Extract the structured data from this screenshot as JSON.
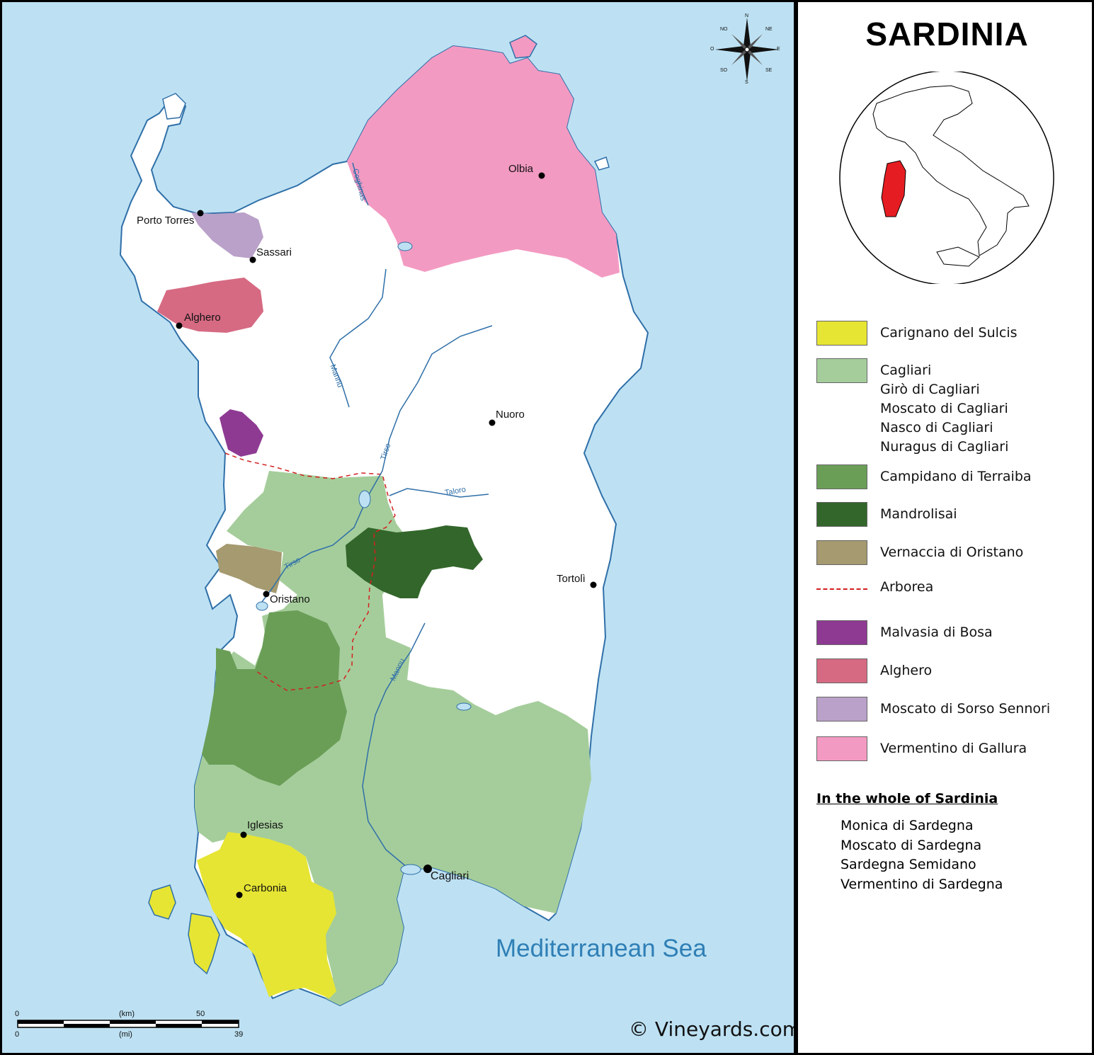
{
  "title": "SARDINIA",
  "sea_label": "Mediterranean Sea",
  "copyright": "© Vineyards.com",
  "colors": {
    "sea": "#bde1f3",
    "land": "#ffffff",
    "coast": "#2f6fa8",
    "carignano": "#e6e533",
    "cagliari": "#a5cd9b",
    "campidano": "#6a9e57",
    "mandrolisai": "#33662b",
    "vernaccia": "#a59a70",
    "arborea": "#d32020",
    "malvasia": "#8e3a93",
    "alghero": "#d66a83",
    "moscato_sorso": "#baa1c9",
    "vermentino_gallura": "#f39ac2",
    "italy_sardinia": "#e51d22"
  },
  "cities": [
    {
      "name": "Olbia"
    },
    {
      "name": "Porto Torres"
    },
    {
      "name": "Sassari"
    },
    {
      "name": "Alghero"
    },
    {
      "name": "Nuoro"
    },
    {
      "name": "Tortolì"
    },
    {
      "name": "Oristano"
    },
    {
      "name": "Iglesias"
    },
    {
      "name": "Carbonia"
    },
    {
      "name": "Cagliari"
    }
  ],
  "rivers": {
    "coghinas": "Coghinas",
    "manna_north": "Mannu",
    "tirso_upper": "Tirso",
    "taloro": "Taloro",
    "tirso_lower": "Tirso",
    "manna_south": "Mannu"
  },
  "compass": {
    "n": "N",
    "s": "S",
    "e": "E",
    "o": "O",
    "no": "NO",
    "ne": "NE",
    "so": "SO",
    "se": "SE"
  },
  "scale": {
    "km_label": "(km)",
    "mi_label": "(mi)",
    "km_zero": "0",
    "km_max": "50",
    "mi_zero": "0",
    "mi_max": "39"
  },
  "legend": [
    {
      "key": "carignano",
      "labels": [
        "Carignano del Sulcis"
      ]
    },
    {
      "key": "cagliari",
      "labels": [
        "Cagliari",
        "Girò di Cagliari",
        "Moscato di Cagliari",
        "Nasco di Cagliari",
        "Nuragus di Cagliari"
      ]
    },
    {
      "key": "campidano",
      "labels": [
        "Campidano di Terraiba"
      ]
    },
    {
      "key": "mandrolisai",
      "labels": [
        "Mandrolisai"
      ]
    },
    {
      "key": "vernaccia",
      "labels": [
        "Vernaccia di Oristano"
      ]
    },
    {
      "key": "arborea",
      "labels": [
        "Arborea"
      ]
    },
    {
      "key": "malvasia",
      "labels": [
        "Malvasia di Bosa"
      ]
    },
    {
      "key": "alghero",
      "labels": [
        "Alghero"
      ]
    },
    {
      "key": "moscato_sorso",
      "labels": [
        "Moscato di Sorso Sennori"
      ]
    },
    {
      "key": "vermentino_gallura",
      "labels": [
        "Vermentino di Gallura"
      ]
    }
  ],
  "whole": {
    "title": "In the whole of Sardinia",
    "items": [
      "Monica di Sardegna",
      "Moscato di Sardegna",
      "Sardegna Semidano",
      "Vermentino di Sardegna"
    ]
  }
}
